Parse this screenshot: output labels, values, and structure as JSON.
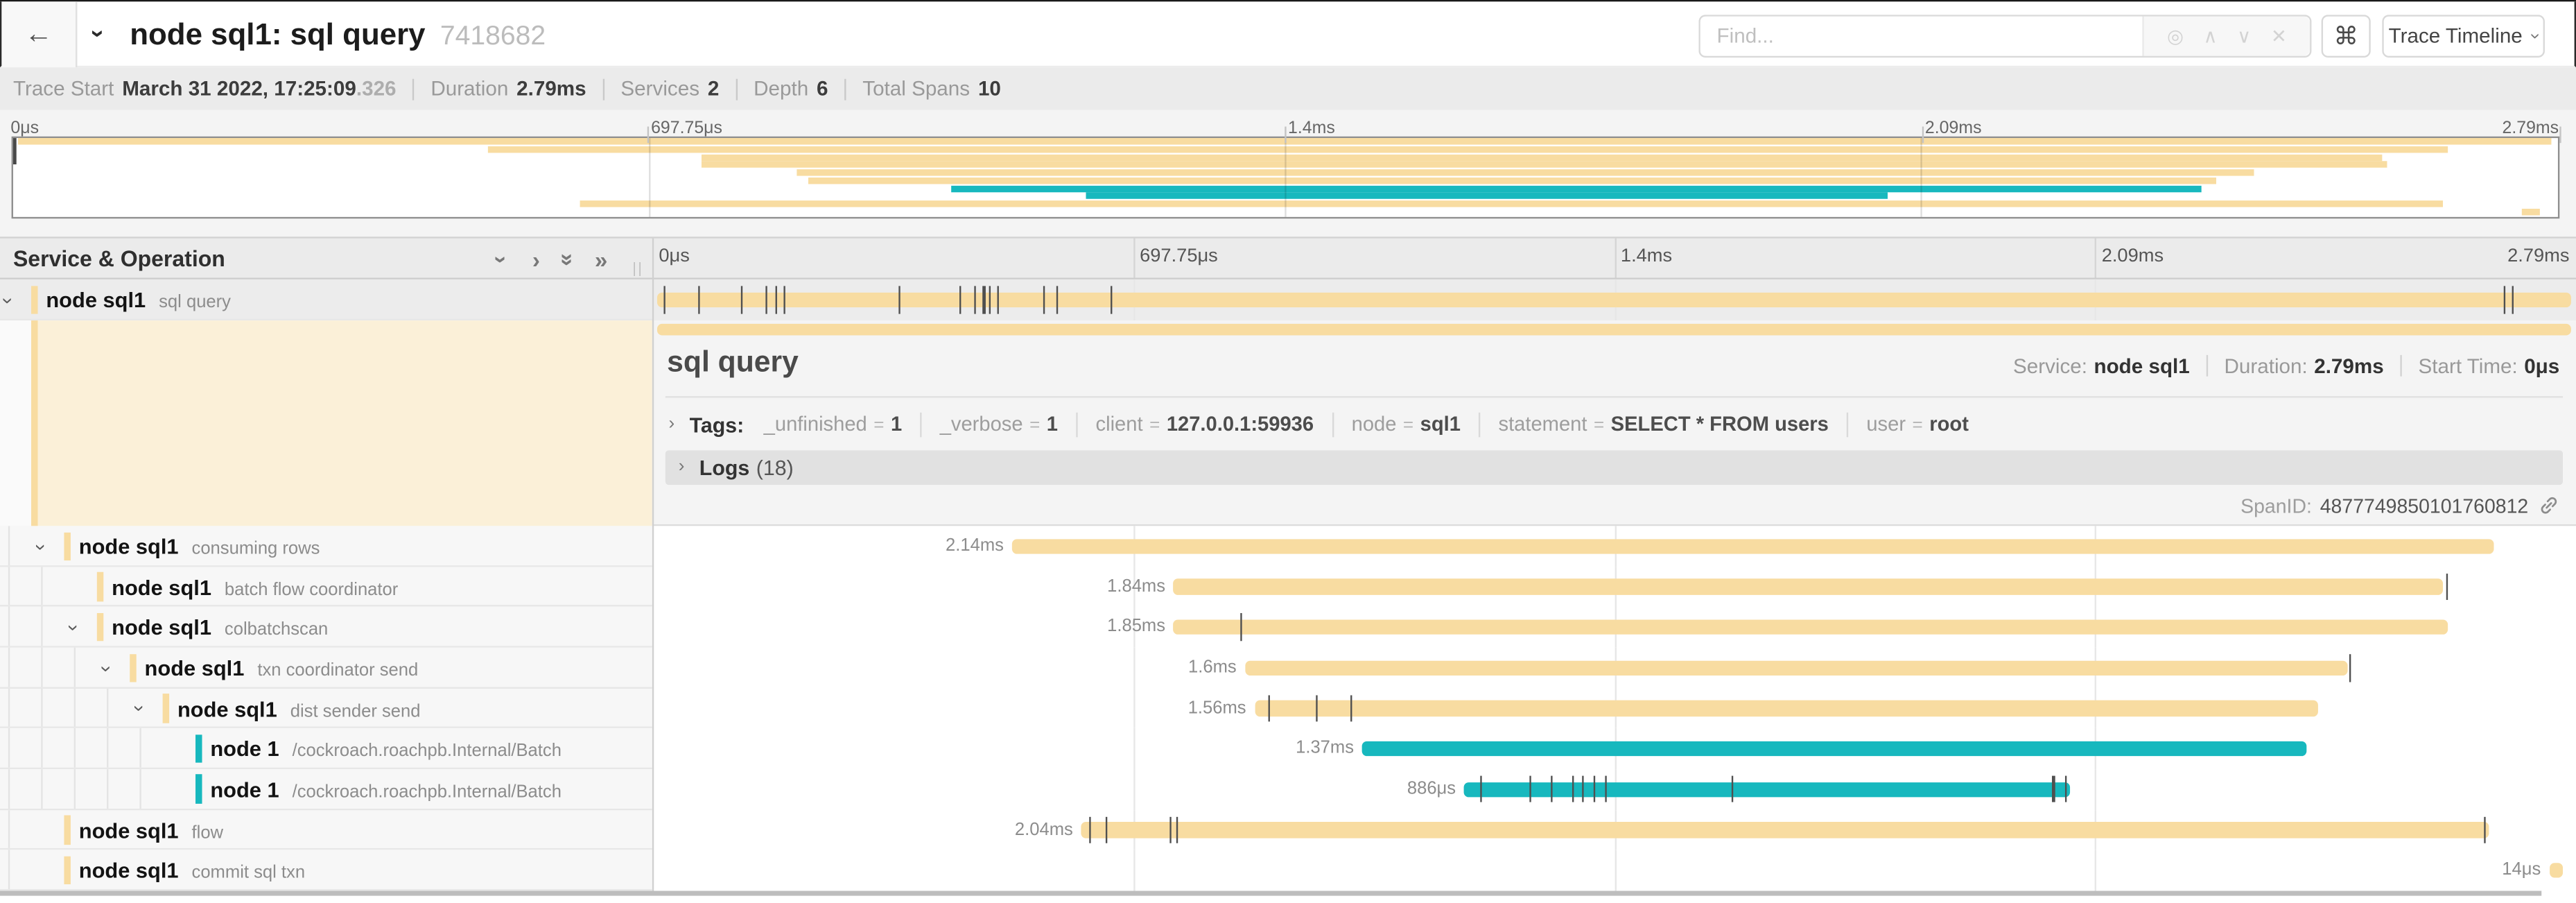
{
  "colors": {
    "amber": "#F8DCA1",
    "teal": "#17B8BE"
  },
  "topbar": {
    "back_icon": "←",
    "collapse_icon": "›",
    "title": "node sql1: sql query",
    "trace_id": "7418682",
    "find_placeholder": "Find...",
    "locate_icon": "◎",
    "prev_icon": "∧",
    "next_icon": "∨",
    "clear_icon": "✕",
    "shortcuts_icon": "⌘",
    "view_button_label": "Trace Timeline",
    "view_caret": "›"
  },
  "trace_info": {
    "items": [
      {
        "label": "Trace Start",
        "value": "March 31 2022, 17:25:09",
        "suffix": ".326"
      },
      {
        "label": "Duration",
        "value": "2.79ms"
      },
      {
        "label": "Services",
        "value": "2"
      },
      {
        "label": "Depth",
        "value": "6"
      },
      {
        "label": "Total Spans",
        "value": "10"
      }
    ]
  },
  "axis": {
    "ticks": [
      {
        "label": "0μs",
        "pct": 0
      },
      {
        "label": "697.75μs",
        "pct": 25
      },
      {
        "label": "1.4ms",
        "pct": 50
      },
      {
        "label": "2.09ms",
        "pct": 75
      },
      {
        "label": "2.79ms",
        "pct": 100
      }
    ]
  },
  "section": {
    "title": "Service & Operation",
    "grip": "||"
  },
  "detail": {
    "title": "sql query",
    "service_label": "Service:",
    "service": "node sql1",
    "duration_label": "Duration:",
    "duration": "2.79ms",
    "start_label": "Start Time:",
    "start": "0μs",
    "tags_toggle": "›",
    "tags_label": "Tags:",
    "tags": [
      {
        "key": "_unfinished",
        "value": "1"
      },
      {
        "key": "_verbose",
        "value": "1"
      },
      {
        "key": "client",
        "value": "127.0.0.1:59936"
      },
      {
        "key": "node",
        "value": "sql1"
      },
      {
        "key": "statement",
        "value": "SELECT * FROM users"
      },
      {
        "key": "user",
        "value": "root"
      }
    ],
    "logs_toggle": "›",
    "logs_label": "Logs",
    "logs_count": "(18)",
    "span_id_label": "SpanID:",
    "span_id": "4877749850101760812"
  },
  "spans": [
    {
      "service": "node sql1",
      "operation": "sql query",
      "level": 0,
      "expanded": true,
      "selected": true,
      "color": "amber",
      "start_pct": 0.25,
      "end_pct": 99.75,
      "duration_label": "",
      "ticks": [
        0.6,
        2.4,
        4.6,
        5.9,
        6.4,
        6.8,
        12.8,
        16.0,
        16.7,
        17.2,
        17.5,
        17.9,
        20.3,
        21.0,
        23.8,
        96.2,
        96.7
      ]
    },
    {
      "service": "node sql1",
      "operation": "consuming rows",
      "level": 1,
      "expanded": true,
      "selected": false,
      "color": "amber",
      "start_pct": 18.7,
      "end_pct": 95.7,
      "duration_label": "2.14ms",
      "ticks": []
    },
    {
      "service": "node sql1",
      "operation": "batch flow coordinator",
      "level": 2,
      "expanded": false,
      "selected": false,
      "color": "amber",
      "start_pct": 27.1,
      "end_pct": 93.1,
      "duration_label": "1.84ms",
      "ticks": [
        93.25
      ]
    },
    {
      "service": "node sql1",
      "operation": "colbatchscan",
      "level": 2,
      "expanded": true,
      "selected": false,
      "color": "amber",
      "start_pct": 27.1,
      "end_pct": 93.3,
      "duration_label": "1.85ms",
      "ticks": [
        30.6
      ]
    },
    {
      "service": "node sql1",
      "operation": "txn coordinator send",
      "level": 3,
      "expanded": true,
      "selected": false,
      "color": "amber",
      "start_pct": 30.8,
      "end_pct": 88.1,
      "duration_label": "1.6ms",
      "ticks": [
        88.2
      ]
    },
    {
      "service": "node sql1",
      "operation": "dist sender send",
      "level": 4,
      "expanded": true,
      "selected": false,
      "color": "amber",
      "start_pct": 31.3,
      "end_pct": 86.6,
      "duration_label": "1.56ms",
      "ticks": [
        32.0,
        34.5,
        36.3
      ]
    },
    {
      "service": "node 1",
      "operation": "/cockroach.roachpb.Internal/Batch",
      "level": 5,
      "expanded": false,
      "selected": false,
      "color": "teal",
      "start_pct": 36.9,
      "end_pct": 86.0,
      "duration_label": "1.37ms",
      "ticks": []
    },
    {
      "service": "node 1",
      "operation": "/cockroach.roachpb.Internal/Batch",
      "level": 5,
      "expanded": false,
      "selected": false,
      "color": "teal",
      "start_pct": 42.2,
      "end_pct": 73.7,
      "duration_label": "886μs",
      "ticks": [
        43.0,
        45.6,
        46.7,
        47.8,
        48.3,
        48.9,
        49.5,
        56.1,
        72.8,
        73.4
      ]
    },
    {
      "service": "node sql1",
      "operation": "flow",
      "level": 1,
      "expanded": false,
      "selected": false,
      "color": "amber",
      "start_pct": 22.3,
      "end_pct": 95.5,
      "duration_label": "2.04ms",
      "ticks": [
        22.7,
        23.6,
        26.9,
        27.2,
        95.2
      ]
    },
    {
      "service": "node sql1",
      "operation": "commit sql txn",
      "level": 1,
      "expanded": false,
      "selected": false,
      "color": "amber",
      "start_pct": 98.6,
      "end_pct": 99.3,
      "duration_label": "14μs",
      "ticks": []
    }
  ]
}
